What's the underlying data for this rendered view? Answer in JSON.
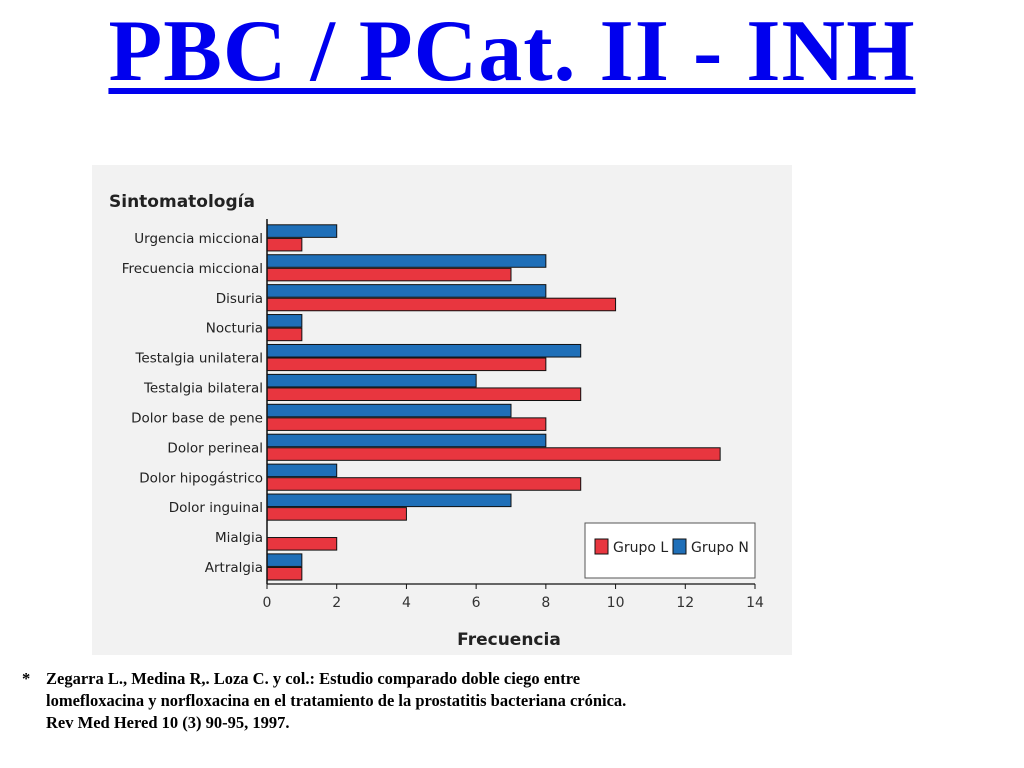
{
  "title": "PBC / PCat. II - INH",
  "citation": {
    "marker": "*",
    "lines": [
      "Zegarra L.,  Medina R,. Loza C. y col.: Estudio comparado doble ciego entre",
      "lomefloxacina y norfloxacina en el tratamiento de la prostatitis bacteriana crónica.",
      "Rev Med Hered 10 (3) 90-95, 1997."
    ]
  },
  "colors": {
    "grupo_l": "#e8363f",
    "grupo_n": "#1f6fb8",
    "title": "#0000ee"
  },
  "chart_data": {
    "type": "bar",
    "orientation": "horizontal",
    "title": "Sintomatología",
    "xlabel": "Frecuencia",
    "ylabel": "",
    "xlim": [
      0,
      14
    ],
    "xticks": [
      "0",
      "2",
      "4",
      "6",
      "8",
      "10",
      "12",
      "14"
    ],
    "grid": false,
    "legend_position": "bottom-right",
    "categories": [
      "Urgencia miccional",
      "Frecuencia miccional",
      "Disuria",
      "Nocturia",
      "Testalgia unilateral",
      "Testalgia bilateral",
      "Dolor base de pene",
      "Dolor perineal",
      "Dolor hipogástrico",
      "Dolor inguinal",
      "Mialgia",
      "Artralgia"
    ],
    "series": [
      {
        "name": "Grupo N",
        "color": "#1f6fb8",
        "values": [
          2,
          8,
          8,
          1,
          9,
          6,
          7,
          8,
          2,
          7,
          0,
          1
        ]
      },
      {
        "name": "Grupo L",
        "color": "#e8363f",
        "values": [
          1,
          7,
          10,
          1,
          8,
          9,
          8,
          13,
          9,
          4,
          2,
          1
        ]
      }
    ]
  }
}
